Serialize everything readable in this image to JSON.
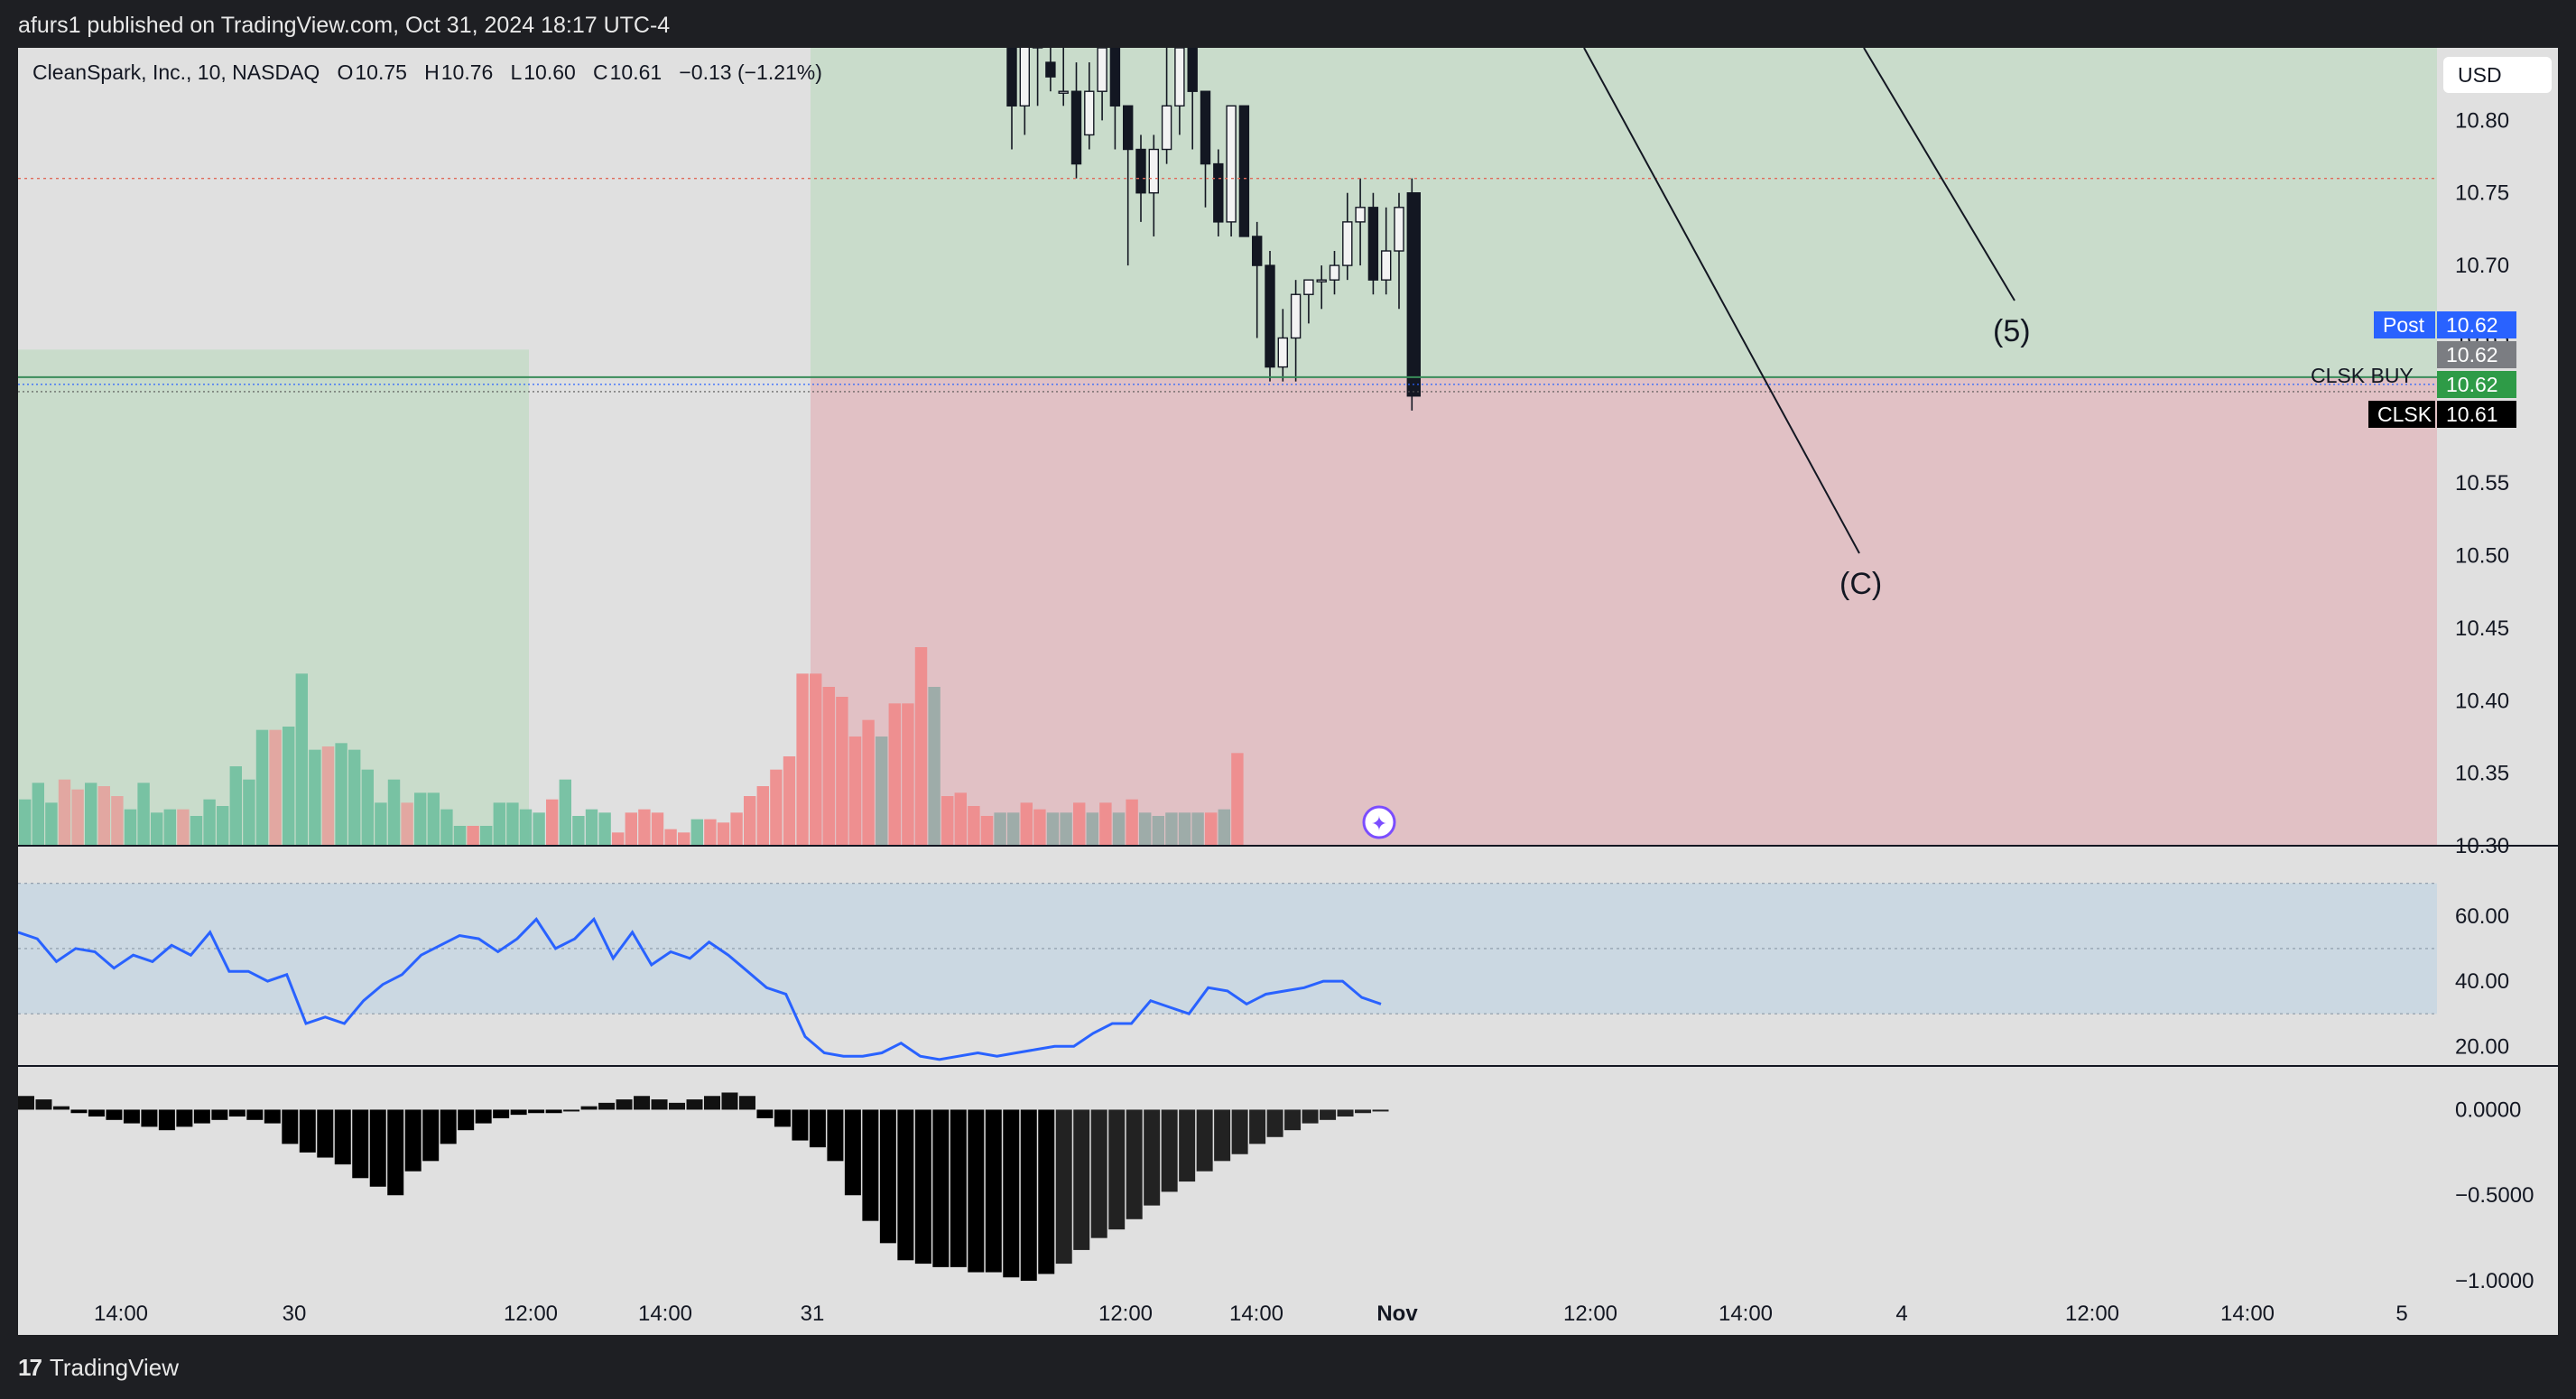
{
  "header": {
    "published": "afurs1 published on TradingView.com, Oct 31, 2024 18:17 UTC-4"
  },
  "legend": {
    "symbol": "CleanSpark, Inc., 10, NASDAQ",
    "open_k": "O",
    "open": "10.75",
    "high_k": "H",
    "high": "10.76",
    "low_k": "L",
    "low": "10.60",
    "close_k": "C",
    "close": "10.61",
    "change": "−0.13 (−1.21%)"
  },
  "currency_button": "USD",
  "price_labels": {
    "post_tag": "Post",
    "post_value": "10.62",
    "grey_value": "10.62",
    "green_value": "10.62",
    "clsk_tag": "CLSK",
    "clsk_value": "10.61",
    "line_text": "CLSK BUY"
  },
  "annotations": {
    "wave_5": "(5)",
    "wave_c": "(C)"
  },
  "footer": {
    "brand": "TradingView",
    "brand_mark": "17"
  },
  "colors": {
    "background": "#e0e0e0",
    "profit_zone": "#c9dccb",
    "loss_zone": "#e1c1c5",
    "rsi_band": "#cbd8e2",
    "rsi_line": "#2962ff",
    "volume_up": "#6fbf9f",
    "volume_down": "#ef8a8a",
    "post_tag": "#2962ff",
    "green_tag": "#2e9b47"
  },
  "chart_data": [
    {
      "type": "candlestick",
      "title": "CleanSpark, Inc., 10, NASDAQ",
      "ylim": [
        10.3,
        10.85
      ],
      "yticks": [
        "10.80",
        "10.75",
        "10.70",
        "10.65",
        "10.60",
        "10.55",
        "10.50",
        "10.45",
        "10.40",
        "10.35",
        "10.30"
      ],
      "xticks": [
        "14:00",
        "30",
        "12:00",
        "14:00",
        "31",
        "12:00",
        "14:00",
        "Nov",
        "12:00",
        "14:00",
        "4",
        "12:00",
        "14:00",
        "5"
      ],
      "candles": [
        {
          "o": 10.85,
          "h": 10.85,
          "l": 10.78,
          "c": 10.81
        },
        {
          "o": 10.81,
          "h": 10.86,
          "l": 10.79,
          "c": 10.86
        },
        {
          "o": 10.86,
          "h": 10.86,
          "l": 10.81,
          "c": 10.85
        },
        {
          "o": 10.84,
          "h": 10.86,
          "l": 10.82,
          "c": 10.83
        },
        {
          "o": 10.82,
          "h": 10.85,
          "l": 10.81,
          "c": 10.82
        },
        {
          "o": 10.82,
          "h": 10.84,
          "l": 10.76,
          "c": 10.77
        },
        {
          "o": 10.79,
          "h": 10.84,
          "l": 10.78,
          "c": 10.82
        },
        {
          "o": 10.82,
          "h": 10.86,
          "l": 10.8,
          "c": 10.85
        },
        {
          "o": 10.85,
          "h": 10.86,
          "l": 10.78,
          "c": 10.81
        },
        {
          "o": 10.81,
          "h": 10.81,
          "l": 10.7,
          "c": 10.78
        },
        {
          "o": 10.78,
          "h": 10.79,
          "l": 10.73,
          "c": 10.75
        },
        {
          "o": 10.75,
          "h": 10.79,
          "l": 10.72,
          "c": 10.78
        },
        {
          "o": 10.78,
          "h": 10.85,
          "l": 10.77,
          "c": 10.81
        },
        {
          "o": 10.81,
          "h": 10.86,
          "l": 10.79,
          "c": 10.85
        },
        {
          "o": 10.85,
          "h": 10.86,
          "l": 10.78,
          "c": 10.82
        },
        {
          "o": 10.82,
          "h": 10.82,
          "l": 10.74,
          "c": 10.77
        },
        {
          "o": 10.77,
          "h": 10.78,
          "l": 10.72,
          "c": 10.73
        },
        {
          "o": 10.73,
          "h": 10.81,
          "l": 10.72,
          "c": 10.81
        },
        {
          "o": 10.81,
          "h": 10.81,
          "l": 10.72,
          "c": 10.72
        },
        {
          "o": 10.72,
          "h": 10.73,
          "l": 10.65,
          "c": 10.7
        },
        {
          "o": 10.7,
          "h": 10.71,
          "l": 10.62,
          "c": 10.63
        },
        {
          "o": 10.63,
          "h": 10.67,
          "l": 10.62,
          "c": 10.65
        },
        {
          "o": 10.65,
          "h": 10.69,
          "l": 10.62,
          "c": 10.68
        },
        {
          "o": 10.68,
          "h": 10.69,
          "l": 10.66,
          "c": 10.69
        },
        {
          "o": 10.69,
          "h": 10.7,
          "l": 10.67,
          "c": 10.69
        },
        {
          "o": 10.69,
          "h": 10.71,
          "l": 10.68,
          "c": 10.7
        },
        {
          "o": 10.7,
          "h": 10.75,
          "l": 10.69,
          "c": 10.73
        },
        {
          "o": 10.73,
          "h": 10.76,
          "l": 10.7,
          "c": 10.74
        },
        {
          "o": 10.74,
          "h": 10.75,
          "l": 10.68,
          "c": 10.69
        },
        {
          "o": 10.69,
          "h": 10.74,
          "l": 10.68,
          "c": 10.71
        },
        {
          "o": 10.71,
          "h": 10.75,
          "l": 10.67,
          "c": 10.74
        },
        {
          "o": 10.75,
          "h": 10.76,
          "l": 10.6,
          "c": 10.61
        }
      ],
      "volume": [
        {
          "v": 14,
          "c": "up"
        },
        {
          "v": 19,
          "c": "up"
        },
        {
          "v": 13,
          "c": "up"
        },
        {
          "v": 20,
          "c": "down"
        },
        {
          "v": 17,
          "c": "down"
        },
        {
          "v": 19,
          "c": "up"
        },
        {
          "v": 18,
          "c": "down"
        },
        {
          "v": 15,
          "c": "down"
        },
        {
          "v": 11,
          "c": "up"
        },
        {
          "v": 19,
          "c": "up"
        },
        {
          "v": 10,
          "c": "up"
        },
        {
          "v": 11,
          "c": "up"
        },
        {
          "v": 11,
          "c": "down"
        },
        {
          "v": 9,
          "c": "up"
        },
        {
          "v": 14,
          "c": "up"
        },
        {
          "v": 12,
          "c": "up"
        },
        {
          "v": 24,
          "c": "up"
        },
        {
          "v": 20,
          "c": "up"
        },
        {
          "v": 35,
          "c": "up"
        },
        {
          "v": 35,
          "c": "down"
        },
        {
          "v": 36,
          "c": "up"
        },
        {
          "v": 52,
          "c": "up"
        },
        {
          "v": 29,
          "c": "up"
        },
        {
          "v": 30,
          "c": "down"
        },
        {
          "v": 31,
          "c": "up"
        },
        {
          "v": 29,
          "c": "up"
        },
        {
          "v": 23,
          "c": "up"
        },
        {
          "v": 13,
          "c": "up"
        },
        {
          "v": 20,
          "c": "up"
        },
        {
          "v": 13,
          "c": "down"
        },
        {
          "v": 16,
          "c": "up"
        },
        {
          "v": 16,
          "c": "up"
        },
        {
          "v": 11,
          "c": "up"
        },
        {
          "v": 6,
          "c": "up"
        },
        {
          "v": 6,
          "c": "down"
        },
        {
          "v": 6,
          "c": "up"
        },
        {
          "v": 13,
          "c": "up"
        },
        {
          "v": 13,
          "c": "up"
        },
        {
          "v": 11,
          "c": "up"
        },
        {
          "v": 10,
          "c": "up"
        },
        {
          "v": 14,
          "c": "down"
        },
        {
          "v": 20,
          "c": "up"
        },
        {
          "v": 9,
          "c": "up"
        },
        {
          "v": 11,
          "c": "up"
        },
        {
          "v": 10,
          "c": "up"
        },
        {
          "v": 4,
          "c": "down"
        },
        {
          "v": 10,
          "c": "down"
        },
        {
          "v": 11,
          "c": "down"
        },
        {
          "v": 10,
          "c": "down"
        },
        {
          "v": 5,
          "c": "down"
        },
        {
          "v": 4,
          "c": "down"
        },
        {
          "v": 8,
          "c": "up"
        },
        {
          "v": 8,
          "c": "down"
        },
        {
          "v": 7,
          "c": "down"
        },
        {
          "v": 10,
          "c": "down"
        },
        {
          "v": 15,
          "c": "down"
        },
        {
          "v": 18,
          "c": "down"
        },
        {
          "v": 23,
          "c": "down"
        },
        {
          "v": 27,
          "c": "down"
        },
        {
          "v": 52,
          "c": "down"
        },
        {
          "v": 52,
          "c": "down"
        },
        {
          "v": 48,
          "c": "down"
        },
        {
          "v": 45,
          "c": "down"
        },
        {
          "v": 33,
          "c": "down"
        },
        {
          "v": 38,
          "c": "down"
        },
        {
          "v": 33,
          "c": "grey"
        },
        {
          "v": 43,
          "c": "down"
        },
        {
          "v": 43,
          "c": "down"
        },
        {
          "v": 60,
          "c": "down"
        },
        {
          "v": 48,
          "c": "grey"
        },
        {
          "v": 15,
          "c": "down"
        },
        {
          "v": 16,
          "c": "down"
        },
        {
          "v": 12,
          "c": "down"
        },
        {
          "v": 9,
          "c": "down"
        },
        {
          "v": 10,
          "c": "grey"
        },
        {
          "v": 10,
          "c": "grey"
        },
        {
          "v": 13,
          "c": "down"
        },
        {
          "v": 11,
          "c": "down"
        },
        {
          "v": 10,
          "c": "grey"
        },
        {
          "v": 10,
          "c": "grey"
        },
        {
          "v": 13,
          "c": "down"
        },
        {
          "v": 10,
          "c": "grey"
        },
        {
          "v": 13,
          "c": "down"
        },
        {
          "v": 10,
          "c": "grey"
        },
        {
          "v": 14,
          "c": "down"
        },
        {
          "v": 10,
          "c": "grey"
        },
        {
          "v": 9,
          "c": "grey"
        },
        {
          "v": 10,
          "c": "grey"
        },
        {
          "v": 10,
          "c": "grey"
        },
        {
          "v": 10,
          "c": "grey"
        },
        {
          "v": 10,
          "c": "down"
        },
        {
          "v": 11,
          "c": "grey"
        },
        {
          "v": 28,
          "c": "down"
        }
      ]
    },
    {
      "type": "line",
      "name": "RSI",
      "ylim": [
        14,
        76
      ],
      "yticks": [
        "60.00",
        "40.00",
        "20.00"
      ],
      "band": [
        30,
        70
      ],
      "midline": 50,
      "values": [
        55,
        53,
        46,
        50,
        49,
        44,
        48,
        46,
        51,
        48,
        55,
        43,
        43,
        40,
        42,
        27,
        29,
        27,
        34,
        39,
        42,
        48,
        51,
        54,
        53,
        49,
        53,
        59,
        50,
        53,
        59,
        47,
        55,
        45,
        49,
        47,
        52,
        48,
        43,
        38,
        36,
        23,
        18,
        17,
        17,
        18,
        21,
        17,
        16,
        17,
        18,
        17,
        18,
        19,
        20,
        20,
        24,
        27,
        27,
        34,
        32,
        30,
        38,
        37,
        33,
        36,
        37,
        38,
        40,
        40,
        35,
        33
      ]
    },
    {
      "type": "bar",
      "name": "Histogram",
      "ylim": [
        -1.1,
        0.15
      ],
      "yticks": [
        "0.0000",
        "−0.5000",
        "−1.0000"
      ],
      "values": [
        0.08,
        0.06,
        0.02,
        -0.02,
        -0.04,
        -0.06,
        -0.08,
        -0.1,
        -0.12,
        -0.1,
        -0.08,
        -0.06,
        -0.04,
        -0.06,
        -0.08,
        -0.2,
        -0.25,
        -0.28,
        -0.32,
        -0.4,
        -0.45,
        -0.5,
        -0.36,
        -0.3,
        -0.2,
        -0.12,
        -0.08,
        -0.05,
        -0.03,
        -0.02,
        -0.02,
        0.0,
        0.02,
        0.04,
        0.06,
        0.08,
        0.06,
        0.04,
        0.06,
        0.08,
        0.1,
        0.08,
        -0.05,
        -0.1,
        -0.18,
        -0.22,
        -0.3,
        -0.5,
        -0.65,
        -0.78,
        -0.88,
        -0.9,
        -0.92,
        -0.92,
        -0.95,
        -0.95,
        -0.98,
        -1.0,
        -0.96,
        -0.9,
        -0.82,
        -0.75,
        -0.7,
        -0.64,
        -0.56,
        -0.48,
        -0.42,
        -0.36,
        -0.3,
        -0.26,
        -0.2,
        -0.16,
        -0.12,
        -0.08,
        -0.06,
        -0.04,
        -0.02,
        -0.01
      ]
    }
  ]
}
